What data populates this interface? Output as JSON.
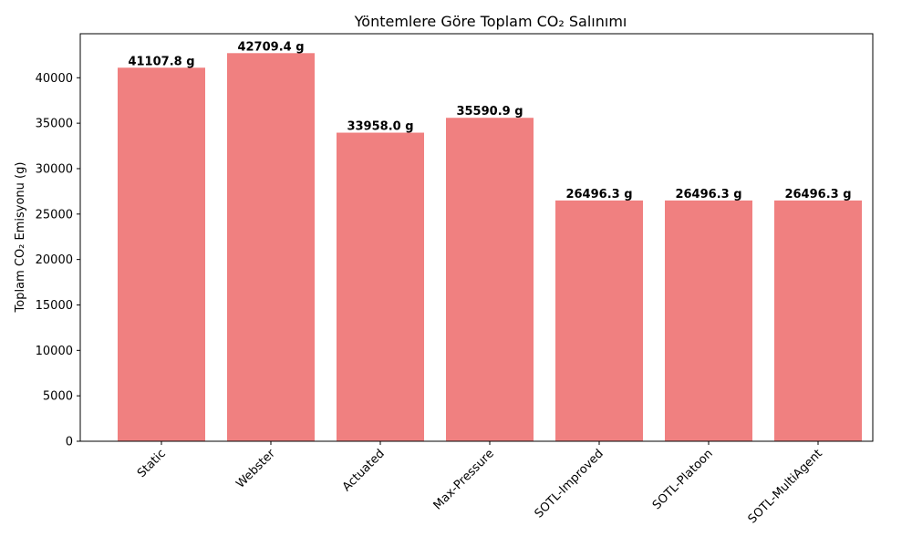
{
  "chart_data": {
    "type": "bar",
    "title": "Yöntemlere Göre Toplam CO₂ Salınımı",
    "xlabel": "",
    "ylabel": "Toplam CO₂ Emisyonu (g)",
    "categories": [
      "Static",
      "Webster",
      "Actuated",
      "Max-Pressure",
      "SOTL-Improved",
      "SOTL-Platoon",
      "SOTL-MultiAgent"
    ],
    "values": [
      41107.8,
      42709.4,
      33958.0,
      35590.9,
      26496.3,
      26496.3,
      26496.3
    ],
    "bar_labels": [
      "41107.8 g",
      "42709.4 g",
      "33958.0 g",
      "35590.9 g",
      "26496.3 g",
      "26496.3 g",
      "26496.3 g"
    ],
    "yticks": [
      0,
      5000,
      10000,
      15000,
      20000,
      25000,
      30000,
      35000,
      40000
    ],
    "ytick_labels": [
      "0",
      "5000",
      "10000",
      "15000",
      "20000",
      "25000",
      "30000",
      "35000",
      "40000"
    ],
    "ylim": [
      0,
      44845
    ],
    "bar_color": "#f08080",
    "grid": false,
    "legend": "none"
  }
}
